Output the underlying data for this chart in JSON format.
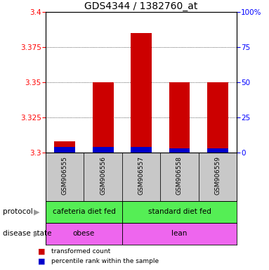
{
  "title": "GDS4344 / 1382760_at",
  "samples": [
    "GSM906555",
    "GSM906556",
    "GSM906557",
    "GSM906558",
    "GSM906559"
  ],
  "red_values": [
    3.308,
    3.35,
    3.385,
    3.35,
    3.35
  ],
  "blue_values": [
    3.304,
    3.304,
    3.304,
    3.303,
    3.303
  ],
  "y_min": 3.3,
  "y_max": 3.4,
  "y_ticks_left": [
    3.3,
    3.325,
    3.35,
    3.375,
    3.4
  ],
  "y_ticks_right": [
    0,
    25,
    50,
    75,
    100
  ],
  "bar_width": 0.55,
  "red_color": "#cc0000",
  "blue_color": "#0000cc",
  "protocol_labels": [
    "cafeteria diet fed",
    "standard diet fed"
  ],
  "protocol_color": "#55ee55",
  "disease_labels": [
    "obese",
    "lean"
  ],
  "disease_color": "#ee66ee",
  "label_bg_color": "#c8c8c8",
  "legend_red": "transformed count",
  "legend_blue": "percentile rank within the sample",
  "title_fontsize": 10,
  "tick_fontsize": 7.5,
  "sample_fontsize": 6.5,
  "annot_fontsize": 7.5
}
